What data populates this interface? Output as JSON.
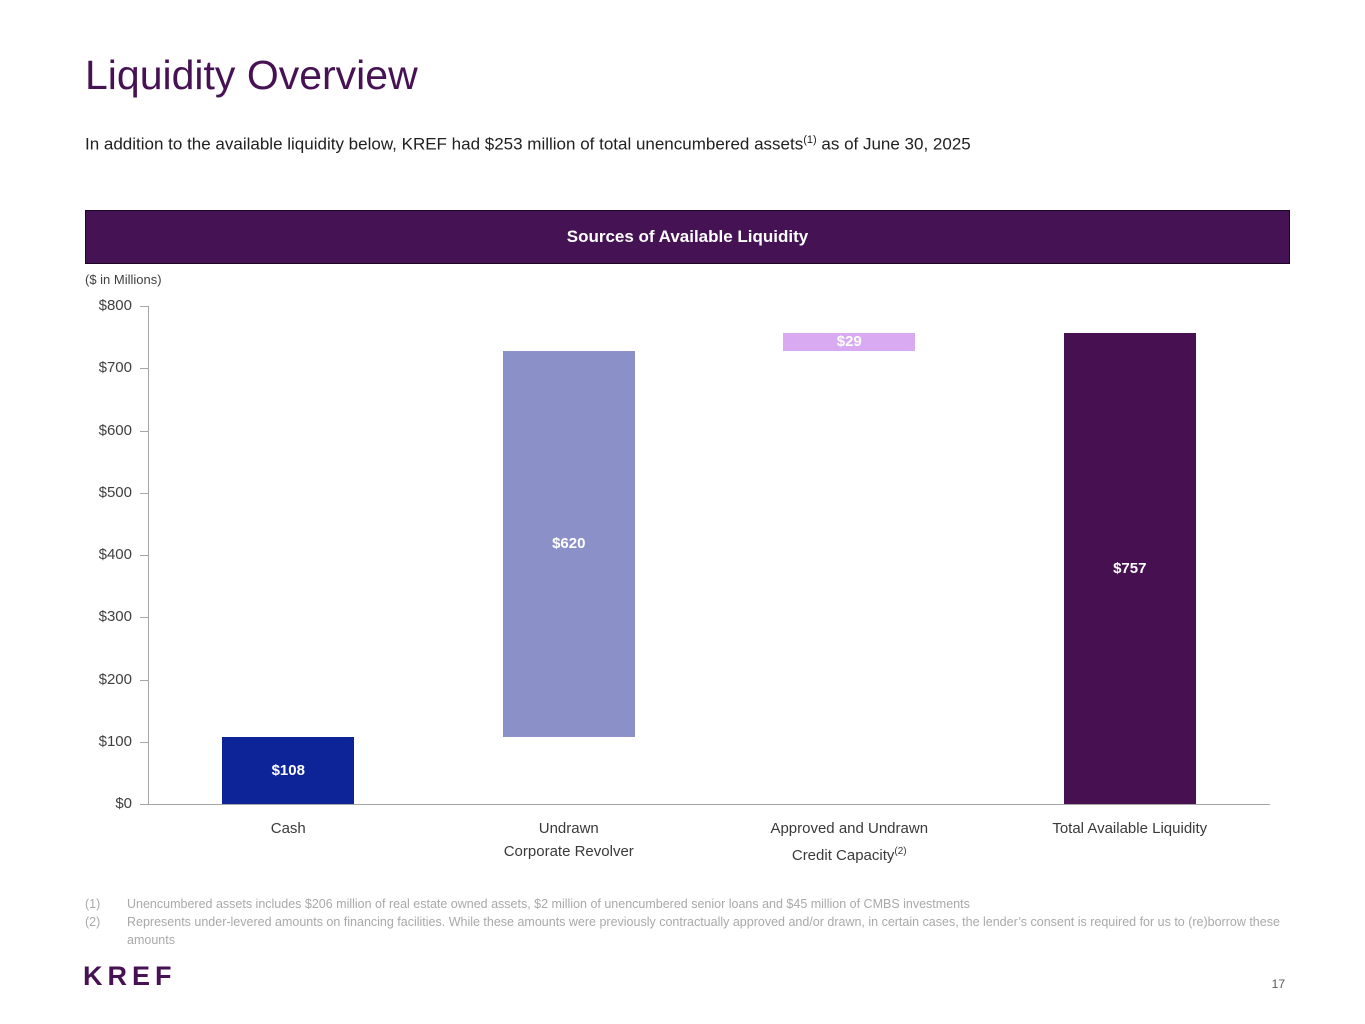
{
  "slide": {
    "title": "Liquidity Overview",
    "subtitle": {
      "pre": "In addition to the available liquidity below, KREF had $253 million of total unencumbered assets",
      "sup": "(1)",
      "post": " as of June 30, 2025"
    },
    "logo": "KREF",
    "page_number": "17"
  },
  "banner": {
    "title": "Sources of Available Liquidity"
  },
  "colors": {
    "title_text": "#471253",
    "banner_bg": "#451253",
    "banner_text": "#FFFFFF",
    "axis": "#A6A6A6",
    "axis_text": "#3F3F3F",
    "footnote_text": "#A9A9A9",
    "bar_cash": "#0D2398",
    "bar_revolver": "#8B90C9",
    "bar_credit_capacity": "#D9AAF2",
    "bar_total": "#461051"
  },
  "chart_data": {
    "type": "bar",
    "subtype": "floating-waterfall",
    "title": "Sources of Available Liquidity",
    "units_label": "($ in Millions)",
    "grid": false,
    "ylim": [
      0,
      800
    ],
    "y_tick_step": 100,
    "y_tick_labels": [
      "$0",
      "$100",
      "$200",
      "$300",
      "$400",
      "$500",
      "$600",
      "$700",
      "$800"
    ],
    "bars": [
      {
        "category_lines": [
          "Cash"
        ],
        "value": 108,
        "base": 0,
        "label": "$108",
        "color": "#0D2398"
      },
      {
        "category_lines": [
          "Undrawn",
          "Corporate Revolver"
        ],
        "value": 620,
        "base": 108,
        "label": "$620",
        "color": "#8B90C9"
      },
      {
        "category_lines": [
          "Approved and Undrawn",
          "Credit Capacity"
        ],
        "category_sup": "(2)",
        "value": 29,
        "base": 728,
        "label": "$29",
        "color": "#D9AAF2"
      },
      {
        "category_lines": [
          "Total Available Liquidity"
        ],
        "value": 757,
        "base": 0,
        "label": "$757",
        "color": "#461051"
      }
    ]
  },
  "footnotes": [
    {
      "marker": "(1)",
      "text": "Unencumbered assets includes $206 million of real estate owned assets, $2 million of unencumbered senior loans and $45 million of CMBS investments"
    },
    {
      "marker": "(2)",
      "text": "Represents under-levered amounts on financing facilities. While these amounts were previously contractually approved and/or drawn, in certain cases, the lender’s consent is required for us to (re)borrow these amounts"
    }
  ]
}
